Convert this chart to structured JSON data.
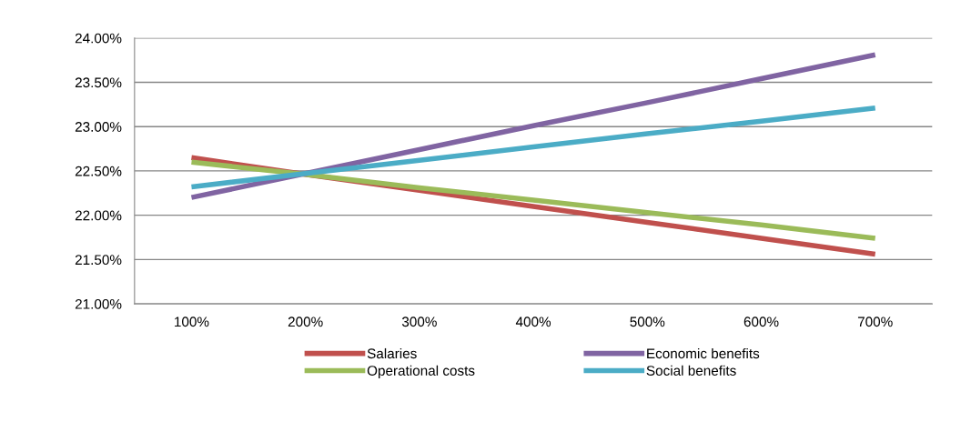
{
  "chart_data": {
    "type": "line",
    "categories": [
      "100%",
      "200%",
      "300%",
      "400%",
      "500%",
      "600%",
      "700%"
    ],
    "series": [
      {
        "name": "Salaries",
        "color": "#c0504d",
        "values": [
          22.65,
          22.46,
          22.28,
          22.1,
          21.92,
          21.74,
          21.56
        ]
      },
      {
        "name": "Operational costs",
        "color": "#9bbb59",
        "values": [
          22.6,
          22.46,
          22.31,
          22.17,
          22.03,
          21.89,
          21.74
        ]
      },
      {
        "name": "Economic benefits",
        "color": "#8064a2",
        "values": [
          22.2,
          22.47,
          22.74,
          23.01,
          23.27,
          23.54,
          23.81
        ]
      },
      {
        "name": "Social benefits",
        "color": "#4bacc6",
        "values": [
          22.32,
          22.47,
          22.62,
          22.77,
          22.92,
          23.06,
          23.21
        ]
      }
    ],
    "ylim": [
      21,
      24
    ],
    "yticks": [
      {
        "value": 21,
        "label": "21.00%"
      },
      {
        "value": 21.5,
        "label": "21.50%"
      },
      {
        "value": 22,
        "label": "22.00%"
      },
      {
        "value": 22.5,
        "label": "22.50%"
      },
      {
        "value": 23,
        "label": "23.00%"
      },
      {
        "value": 23.5,
        "label": "23.50%"
      },
      {
        "value": 24,
        "label": "24.00%"
      }
    ],
    "grid": "y",
    "legend": "bottom",
    "marker": "none",
    "line_style": "solid"
  }
}
